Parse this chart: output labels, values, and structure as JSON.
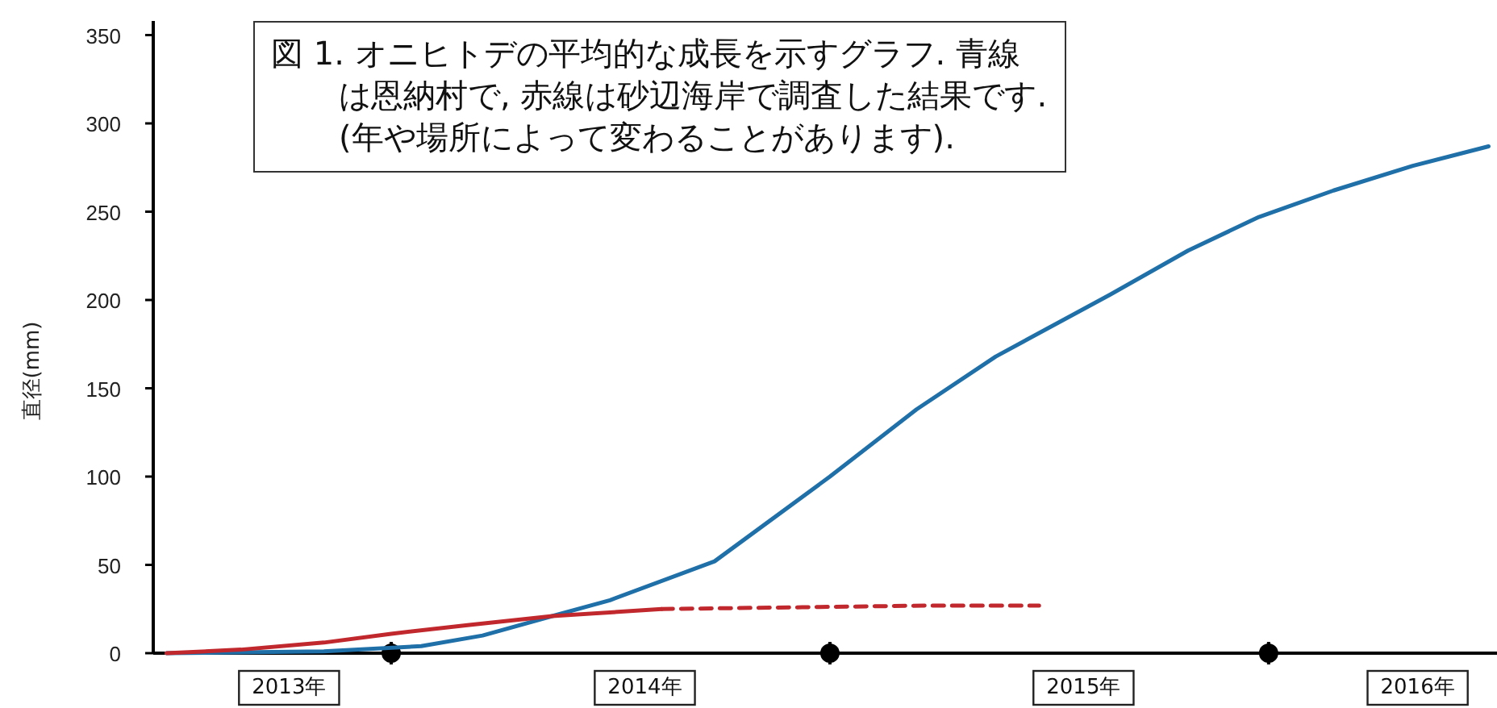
{
  "chart_data": {
    "type": "line",
    "ylabel": "直径(mm)",
    "annotations": [
      "図 1. オニヒトデの平均的な成長を示すグラフ. 青線は恩納村で, 赤線は砂辺海岸で調査した結果です. (年や場所によって変わることがあります)."
    ],
    "xlim": [
      "2013-06-17",
      "2016-07-05"
    ],
    "ylim": [
      0,
      358
    ],
    "yticks": [
      0,
      50,
      100,
      150,
      200,
      250,
      300,
      350
    ],
    "xticks": [
      {
        "value": "2013-10-08",
        "label": "2013年"
      },
      {
        "value": "2014-01-01",
        "label": null
      },
      {
        "value": "2014-07-31",
        "label": "2014年"
      },
      {
        "value": "2015-01-01",
        "label": null
      },
      {
        "value": "2015-07-31",
        "label": "2015年"
      },
      {
        "value": "2016-01-01",
        "label": null
      },
      {
        "value": "2016-05-04",
        "label": "2016年"
      }
    ],
    "series": [
      {
        "color": "#1f6fa8",
        "x": [
          "2013-06-28",
          "2013-11-06",
          "2014-01-26",
          "2014-03-18",
          "2014-05-15",
          "2014-07-02",
          "2014-09-27",
          "2015-01-01",
          "2015-03-14",
          "2015-05-19",
          "2015-08-22",
          "2015-10-26",
          "2015-12-24",
          "2016-02-24",
          "2016-04-30",
          "2016-07-02"
        ],
        "values": [
          0,
          1,
          4,
          10,
          21,
          30,
          52,
          100,
          138,
          168,
          203,
          228,
          247,
          262,
          276,
          287
        ]
      },
      {
        "color": "#c0282d",
        "x": [
          "2013-06-28",
          "2013-08-29",
          "2013-11-06",
          "2014-01-01",
          "2014-03-07",
          "2014-05-15",
          "2014-08-14"
        ],
        "values": [
          0,
          2,
          6,
          11,
          16,
          21,
          25
        ]
      },
      {
        "color": "#c0282d",
        "line_style": "dashed",
        "x": [
          "2014-08-14",
          "2014-12-09",
          "2015-03-25",
          "2015-06-24"
        ],
        "values": [
          25,
          26,
          27,
          27
        ]
      }
    ]
  }
}
